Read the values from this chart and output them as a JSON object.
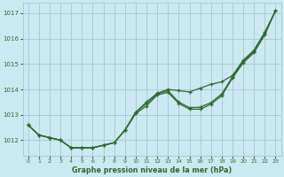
{
  "title": "Graphe pression niveau de la mer (hPa)",
  "bg_color": "#cce8f0",
  "grid_color": "#a8cdd8",
  "line_color": "#2d6a2d",
  "xlim": [
    -0.5,
    23.5
  ],
  "ylim": [
    1011.4,
    1017.4
  ],
  "yticks": [
    1012,
    1013,
    1014,
    1015,
    1016,
    1017
  ],
  "xticks": [
    0,
    1,
    2,
    3,
    4,
    5,
    6,
    7,
    8,
    9,
    10,
    11,
    12,
    13,
    14,
    15,
    16,
    17,
    18,
    19,
    20,
    21,
    22,
    23
  ],
  "series1": [
    1012.6,
    1012.2,
    1012.1,
    1012.0,
    1011.7,
    1011.7,
    1011.7,
    1011.8,
    1011.9,
    1012.4,
    1013.1,
    1013.4,
    1013.8,
    1013.9,
    1013.5,
    1013.3,
    1013.3,
    1013.5,
    1013.8,
    1014.5,
    1015.1,
    1015.5,
    1016.2,
    1017.1
  ],
  "series2": [
    1012.6,
    1012.2,
    1012.1,
    1012.05,
    1011.75,
    1011.75,
    1011.75,
    1011.85,
    1011.95,
    1012.45,
    1013.15,
    1013.45,
    1013.85,
    1014.0,
    1013.95,
    1013.85,
    1014.05,
    1014.15,
    1014.25,
    1014.55,
    1015.15,
    1015.55,
    1016.25,
    1017.1
  ],
  "series3": [
    1012.6,
    1012.2,
    1012.1,
    1012.0,
    1011.7,
    1011.7,
    1011.7,
    1011.8,
    1011.9,
    1012.4,
    1013.0,
    1013.3,
    1013.75,
    1013.9,
    1013.45,
    1013.25,
    1013.25,
    1013.45,
    1013.75,
    1014.5,
    1015.1,
    1015.5,
    1016.2,
    1017.1
  ]
}
